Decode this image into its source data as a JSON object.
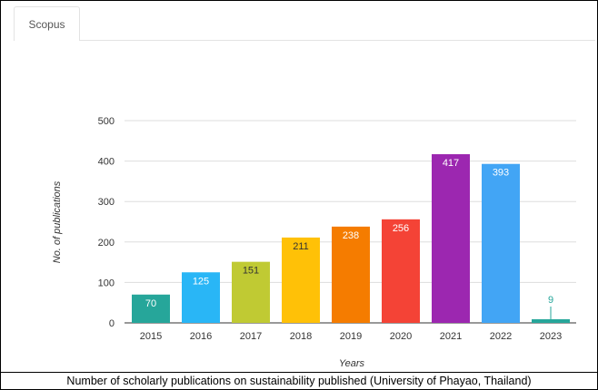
{
  "tab": {
    "label": "Scopus"
  },
  "caption": "Number of scholarly publications on sustainability published (University of Phayao, Thailand)",
  "chart_data": {
    "type": "bar",
    "title": "",
    "xlabel": "Years",
    "ylabel": "No. of publications",
    "ylim": [
      0,
      500
    ],
    "yticks": [
      0,
      100,
      200,
      300,
      400,
      500
    ],
    "grid": true,
    "legend": "none",
    "categories": [
      "2015",
      "2016",
      "2017",
      "2018",
      "2019",
      "2020",
      "2021",
      "2022",
      "2023"
    ],
    "values": [
      70,
      125,
      151,
      211,
      238,
      256,
      417,
      393,
      9
    ],
    "colors": [
      "#26a69a",
      "#29b6f6",
      "#c0ca33",
      "#ffc107",
      "#f57c00",
      "#f44336",
      "#9c27b0",
      "#42a5f5",
      "#26a69a"
    ]
  }
}
